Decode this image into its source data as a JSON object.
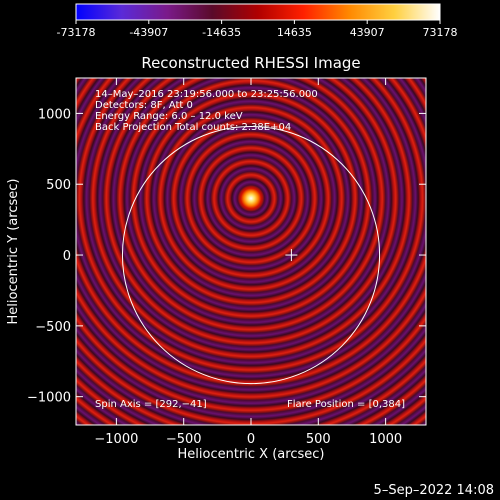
{
  "colorbar": {
    "tick_labels": [
      "-73178",
      "-43907",
      "-14635",
      "14635",
      "43907",
      "73178"
    ],
    "range": [
      -73178,
      73178
    ],
    "colors": [
      "#0000ff",
      "#5a2ad8",
      "#7a1a8a",
      "#5a0a2a",
      "#b00000",
      "#ff2000",
      "#ff8800",
      "#ffd040",
      "#ffffff"
    ]
  },
  "chart_data": {
    "type": "heatmap",
    "title": "Reconstructed RHESSI Image",
    "xlabel": "Heliocentric X (arcsec)",
    "ylabel": "Heliocentric Y (arcsec)",
    "xlim": [
      -1300,
      1300
    ],
    "ylim": [
      -1200,
      1250
    ],
    "x_ticks": [
      -1000,
      -500,
      0,
      500,
      1000
    ],
    "y_ticks": [
      1000,
      500,
      0,
      -500,
      -1000
    ],
    "x_tick_labels": [
      "−1000",
      "−500",
      "0",
      "500",
      "1000"
    ],
    "y_tick_labels": [
      "1000",
      "500",
      "0",
      "−500",
      "−1000"
    ],
    "source_center": [
      0,
      400
    ],
    "flare_marker": [
      300,
      0
    ],
    "solar_limb_radius": 955,
    "ring_spacing": 100,
    "value_range": [
      -73178,
      73178
    ],
    "annotations": [
      "14–May–2016 23:19:56.000 to 23:25:56.000",
      "Detectors: 8F, Att 0",
      "Energy Range: 6.0 – 12.0 keV",
      "Back Projection",
      "Total counts: 2.38E+04"
    ],
    "spin_axis": "Spin Axis = [292,−41]",
    "flare_position": "Flare Position = [0,384]"
  },
  "timestamp": "5–Sep–2022 14:08"
}
